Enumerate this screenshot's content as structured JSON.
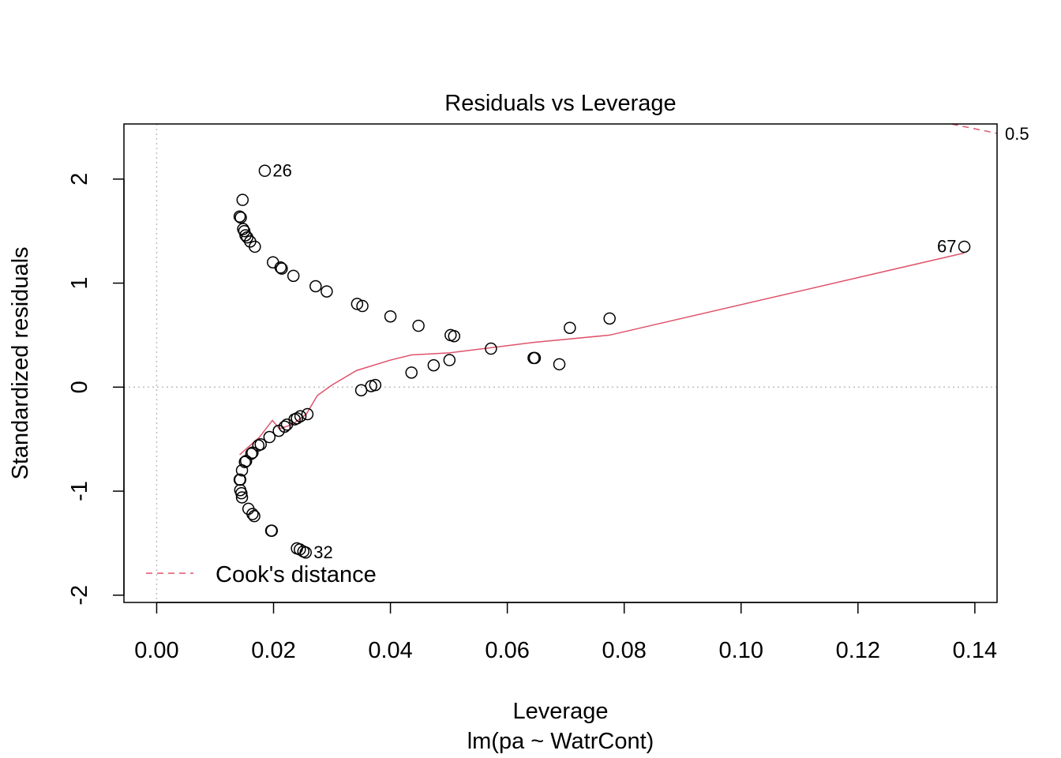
{
  "chart_data": {
    "type": "scatter",
    "title": "Residuals vs Leverage",
    "xlabel": "Leverage",
    "sublabel": "lm(pa ~ WatrCont)",
    "ylabel": "Standardized residuals",
    "xlim": [
      -0.0056,
      0.1438
    ],
    "ylim": [
      -2.07,
      2.53
    ],
    "xticks": [
      0.0,
      0.02,
      0.04,
      0.06,
      0.08,
      0.1,
      0.12,
      0.14
    ],
    "xtick_labels": [
      "0.00",
      "0.02",
      "0.04",
      "0.06",
      "0.08",
      "0.10",
      "0.12",
      "0.14"
    ],
    "yticks": [
      -2,
      -1,
      0,
      1,
      2
    ],
    "ytick_labels": [
      "-2",
      "-1",
      "0",
      "1",
      "2"
    ],
    "reference_lines": {
      "h": 0,
      "v": 0,
      "style": "dotted",
      "color": "#bebebe"
    },
    "legend": {
      "position": "bottom-left",
      "label": "Cook's distance",
      "color": "#DF536B"
    },
    "cooks_contour": {
      "label": "0.5",
      "color": "#DF536B",
      "points": [
        [
          0.1342,
          2.55
        ],
        [
          0.1438,
          2.44
        ]
      ]
    },
    "point_labels": [
      {
        "text": "26",
        "x": 0.0185,
        "y": 2.08,
        "side": "right"
      },
      {
        "text": "67",
        "x": 0.1382,
        "y": 1.35,
        "side": "left"
      },
      {
        "text": "32",
        "x": 0.0255,
        "y": -1.59,
        "side": "right"
      }
    ],
    "points": [
      [
        0.0185,
        2.08
      ],
      [
        0.0147,
        1.8
      ],
      [
        0.0142,
        1.64
      ],
      [
        0.0144,
        1.63
      ],
      [
        0.0148,
        1.52
      ],
      [
        0.015,
        1.5
      ],
      [
        0.0152,
        1.46
      ],
      [
        0.0155,
        1.44
      ],
      [
        0.016,
        1.4
      ],
      [
        0.0168,
        1.35
      ],
      [
        0.0199,
        1.2
      ],
      [
        0.0212,
        1.15
      ],
      [
        0.0214,
        1.14
      ],
      [
        0.0234,
        1.07
      ],
      [
        0.0272,
        0.97
      ],
      [
        0.0291,
        0.92
      ],
      [
        0.0343,
        0.8
      ],
      [
        0.0352,
        0.78
      ],
      [
        0.04,
        0.68
      ],
      [
        0.0448,
        0.59
      ],
      [
        0.0503,
        0.5
      ],
      [
        0.0509,
        0.49
      ],
      [
        0.0572,
        0.37
      ],
      [
        0.0645,
        0.28
      ],
      [
        0.0647,
        0.28
      ],
      [
        0.0689,
        0.22
      ],
      [
        0.0707,
        0.57
      ],
      [
        0.0775,
        0.66
      ],
      [
        0.1382,
        1.35
      ],
      [
        0.0501,
        0.26
      ],
      [
        0.0474,
        0.21
      ],
      [
        0.0436,
        0.14
      ],
      [
        0.0374,
        0.02
      ],
      [
        0.0367,
        0.01
      ],
      [
        0.035,
        -0.03
      ],
      [
        0.0258,
        -0.26
      ],
      [
        0.0246,
        -0.28
      ],
      [
        0.024,
        -0.3
      ],
      [
        0.0236,
        -0.31
      ],
      [
        0.0223,
        -0.36
      ],
      [
        0.0219,
        -0.38
      ],
      [
        0.0209,
        -0.42
      ],
      [
        0.0193,
        -0.48
      ],
      [
        0.0178,
        -0.55
      ],
      [
        0.0174,
        -0.56
      ],
      [
        0.0164,
        -0.63
      ],
      [
        0.0162,
        -0.64
      ],
      [
        0.0153,
        -0.71
      ],
      [
        0.0151,
        -0.72
      ],
      [
        0.0146,
        -0.8
      ],
      [
        0.0143,
        -0.89
      ],
      [
        0.0142,
        -0.89
      ],
      [
        0.0143,
        -0.99
      ],
      [
        0.0145,
        -1.02
      ],
      [
        0.0146,
        -1.06
      ],
      [
        0.0157,
        -1.17
      ],
      [
        0.0164,
        -1.22
      ],
      [
        0.0167,
        -1.24
      ],
      [
        0.0196,
        -1.38
      ],
      [
        0.0197,
        -1.38
      ],
      [
        0.024,
        -1.55
      ],
      [
        0.0245,
        -1.56
      ],
      [
        0.0251,
        -1.58
      ],
      [
        0.0255,
        -1.59
      ]
    ],
    "smooth": [
      [
        0.0142,
        -0.65
      ],
      [
        0.0176,
        -0.48
      ],
      [
        0.0198,
        -0.32
      ],
      [
        0.021,
        -0.4
      ],
      [
        0.0232,
        -0.36
      ],
      [
        0.0256,
        -0.26
      ],
      [
        0.0275,
        -0.08
      ],
      [
        0.03,
        0.02
      ],
      [
        0.0342,
        0.16
      ],
      [
        0.04,
        0.26
      ],
      [
        0.0436,
        0.31
      ],
      [
        0.0501,
        0.33
      ],
      [
        0.0645,
        0.43
      ],
      [
        0.0775,
        0.5
      ],
      [
        0.1382,
        1.29
      ]
    ]
  }
}
